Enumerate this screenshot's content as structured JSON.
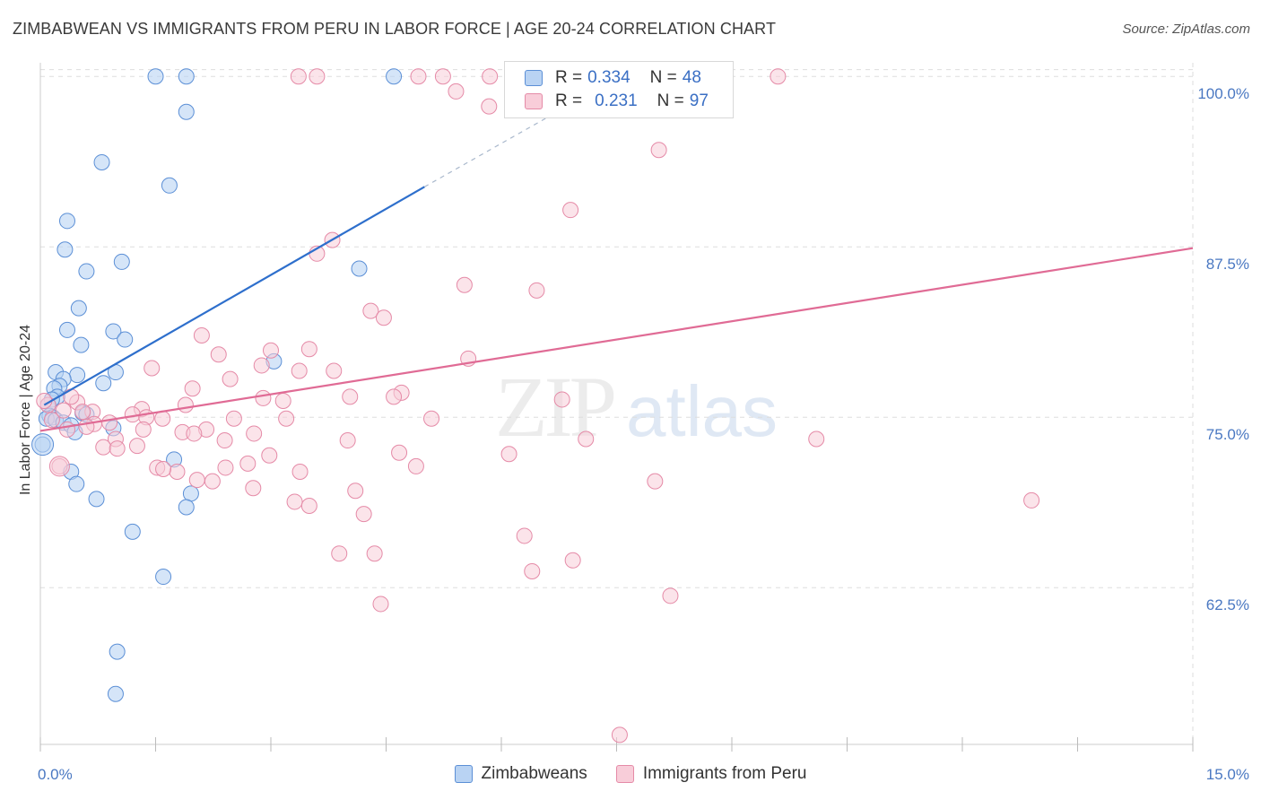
{
  "title": "ZIMBABWEAN VS IMMIGRANTS FROM PERU IN LABOR FORCE | AGE 20-24 CORRELATION CHART",
  "source": "Source: ZipAtlas.com",
  "watermark": {
    "zip": "ZIP",
    "atlas": "atlas"
  },
  "legend": [
    {
      "r_label": "R =",
      "r": "0.334",
      "n_label": "N =",
      "n": "48"
    },
    {
      "r_label": "R =",
      "r": "0.231",
      "n_label": "N =",
      "n": "97"
    }
  ],
  "colors": {
    "blue_fill": "#b9d3f3",
    "blue_stroke": "#5b8fd6",
    "blue_line": "#2e6fcc",
    "pink_fill": "#f8cdd9",
    "pink_stroke": "#e58aa7",
    "pink_line": "#e06b95",
    "grid": "#dddddd",
    "tick_text": "#4a78c2"
  },
  "chart_data": {
    "type": "scatter",
    "title": "ZIMBABWEAN VS IMMIGRANTS FROM PERU IN LABOR FORCE | AGE 20-24 CORRELATION CHART",
    "xlabel": "",
    "ylabel": "In Labor Force | Age 20-24",
    "xlim": [
      0,
      15
    ],
    "ylim": [
      51,
      101
    ],
    "x_tick_labels": [
      "0.0%",
      "15.0%"
    ],
    "y_ticks": [
      62.5,
      75.0,
      87.5,
      100.0
    ],
    "y_tick_labels": [
      "62.5%",
      "75.0%",
      "87.5%",
      "100.0%"
    ],
    "grid": true,
    "legend_position": "bottom",
    "series": [
      {
        "name": "Zimbabweans",
        "r": 0.334,
        "n": 48,
        "trend": {
          "x0": 0.05,
          "y0": 75.9,
          "x1": 5.0,
          "y1": 91.9,
          "dash_to_x": 7.7,
          "dash_to_y": 100.5
        },
        "points": [
          [
            1.5,
            100.0
          ],
          [
            1.9,
            100.0
          ],
          [
            4.6,
            100.0
          ],
          [
            1.9,
            97.4
          ],
          [
            0.8,
            93.7
          ],
          [
            1.68,
            92.0
          ],
          [
            0.35,
            89.4
          ],
          [
            0.32,
            87.3
          ],
          [
            1.06,
            86.4
          ],
          [
            0.6,
            85.7
          ],
          [
            4.15,
            85.9
          ],
          [
            0.5,
            83.0
          ],
          [
            0.35,
            81.4
          ],
          [
            0.95,
            81.3
          ],
          [
            1.1,
            80.7
          ],
          [
            0.53,
            80.3
          ],
          [
            3.04,
            79.1
          ],
          [
            0.98,
            78.3
          ],
          [
            0.2,
            78.3
          ],
          [
            0.48,
            78.1
          ],
          [
            0.3,
            77.8
          ],
          [
            0.82,
            77.5
          ],
          [
            0.25,
            77.3
          ],
          [
            0.18,
            77.1
          ],
          [
            0.22,
            76.5
          ],
          [
            0.15,
            76.3
          ],
          [
            0.1,
            75.9
          ],
          [
            0.55,
            75.3
          ],
          [
            0.12,
            75.1
          ],
          [
            0.16,
            75.0
          ],
          [
            0.08,
            74.9
          ],
          [
            0.2,
            74.8
          ],
          [
            0.3,
            74.6
          ],
          [
            0.4,
            74.4
          ],
          [
            0.95,
            74.2
          ],
          [
            0.45,
            73.9
          ],
          [
            0.03,
            73.0
          ],
          [
            1.74,
            71.9
          ],
          [
            0.4,
            71.0
          ],
          [
            0.47,
            70.1
          ],
          [
            1.96,
            69.4
          ],
          [
            0.73,
            69.0
          ],
          [
            1.9,
            68.4
          ],
          [
            1.2,
            66.6
          ],
          [
            1.6,
            63.3
          ],
          [
            1.0,
            57.8
          ],
          [
            0.98,
            54.7
          ],
          [
            0.6,
            75.2
          ]
        ]
      },
      {
        "name": "Immigrants from Peru",
        "r": 0.231,
        "n": 97,
        "trend": {
          "x0": 0.0,
          "y0": 74.0,
          "x1": 15.0,
          "y1": 87.4
        },
        "points": [
          [
            3.36,
            100.0
          ],
          [
            3.6,
            100.0
          ],
          [
            4.92,
            100.0
          ],
          [
            5.24,
            100.0
          ],
          [
            5.85,
            100.0
          ],
          [
            6.16,
            100.0
          ],
          [
            7.5,
            100.0
          ],
          [
            8.88,
            100.0
          ],
          [
            9.6,
            100.0
          ],
          [
            5.41,
            98.9
          ],
          [
            5.84,
            97.8
          ],
          [
            8.05,
            94.6
          ],
          [
            6.9,
            90.2
          ],
          [
            3.8,
            88.0
          ],
          [
            3.6,
            87.0
          ],
          [
            5.52,
            84.7
          ],
          [
            6.46,
            84.3
          ],
          [
            4.3,
            82.8
          ],
          [
            4.47,
            82.3
          ],
          [
            2.1,
            81.0
          ],
          [
            3.5,
            80.0
          ],
          [
            3.0,
            79.9
          ],
          [
            2.32,
            79.6
          ],
          [
            5.57,
            79.3
          ],
          [
            2.88,
            78.8
          ],
          [
            1.45,
            78.6
          ],
          [
            3.37,
            78.4
          ],
          [
            3.82,
            78.4
          ],
          [
            2.47,
            77.8
          ],
          [
            1.98,
            77.1
          ],
          [
            4.7,
            76.8
          ],
          [
            4.6,
            76.5
          ],
          [
            4.03,
            76.5
          ],
          [
            6.79,
            76.3
          ],
          [
            2.9,
            76.4
          ],
          [
            3.16,
            76.2
          ],
          [
            0.48,
            76.1
          ],
          [
            1.32,
            75.6
          ],
          [
            1.89,
            75.9
          ],
          [
            0.68,
            75.4
          ],
          [
            0.55,
            75.4
          ],
          [
            1.2,
            75.2
          ],
          [
            1.38,
            75.0
          ],
          [
            2.52,
            74.9
          ],
          [
            1.59,
            74.9
          ],
          [
            5.09,
            74.9
          ],
          [
            3.2,
            74.9
          ],
          [
            0.7,
            74.5
          ],
          [
            1.34,
            74.1
          ],
          [
            2.16,
            74.1
          ],
          [
            1.85,
            73.9
          ],
          [
            2.0,
            73.8
          ],
          [
            2.78,
            73.8
          ],
          [
            0.98,
            73.4
          ],
          [
            7.1,
            73.4
          ],
          [
            10.1,
            73.4
          ],
          [
            2.4,
            73.3
          ],
          [
            4.0,
            73.3
          ],
          [
            1.26,
            72.9
          ],
          [
            0.82,
            72.8
          ],
          [
            1.0,
            72.7
          ],
          [
            4.67,
            72.4
          ],
          [
            6.1,
            72.3
          ],
          [
            2.98,
            72.2
          ],
          [
            0.25,
            71.4
          ],
          [
            2.7,
            71.6
          ],
          [
            1.52,
            71.3
          ],
          [
            4.89,
            71.4
          ],
          [
            2.41,
            71.3
          ],
          [
            3.38,
            71.0
          ],
          [
            1.78,
            71.0
          ],
          [
            1.6,
            71.2
          ],
          [
            2.04,
            70.4
          ],
          [
            2.24,
            70.3
          ],
          [
            8.0,
            70.3
          ],
          [
            2.77,
            69.8
          ],
          [
            4.1,
            69.6
          ],
          [
            3.31,
            68.8
          ],
          [
            3.5,
            68.5
          ],
          [
            4.21,
            67.9
          ],
          [
            12.9,
            68.9
          ],
          [
            6.3,
            66.3
          ],
          [
            4.35,
            65.0
          ],
          [
            3.89,
            65.0
          ],
          [
            6.93,
            64.5
          ],
          [
            6.4,
            63.7
          ],
          [
            8.2,
            61.9
          ],
          [
            4.43,
            61.3
          ],
          [
            7.54,
            51.7
          ],
          [
            0.1,
            75.9
          ],
          [
            0.05,
            76.2
          ],
          [
            0.3,
            75.5
          ],
          [
            0.4,
            76.5
          ],
          [
            0.15,
            74.8
          ],
          [
            0.6,
            74.3
          ],
          [
            0.9,
            74.6
          ],
          [
            0.35,
            74.1
          ]
        ]
      }
    ]
  }
}
